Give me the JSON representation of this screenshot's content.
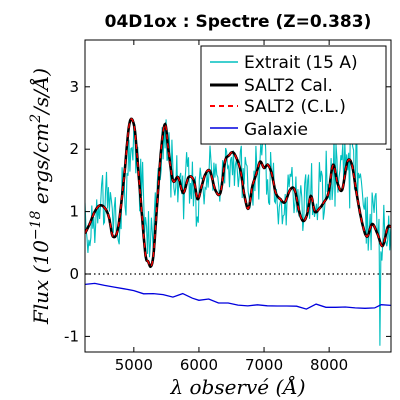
{
  "chart_data": {
    "type": "line",
    "title": "04D1ox : Spectre (Z=0.383)",
    "xlabel": "λ observé (Å)",
    "ylabel": "Flux (10^-18 ergs/cm²/s/Å)",
    "ylabel_parts": {
      "pre": "Flux (10",
      "exp": "−18",
      "post": " ergs/cm",
      "exp2": "2",
      "post2": "/s/Å)"
    },
    "xlim": [
      4250,
      8950
    ],
    "ylim": [
      -1.25,
      3.75
    ],
    "xticks": [
      5000,
      6000,
      7000,
      8000
    ],
    "xtick_labels": [
      "5000",
      "6000",
      "7000",
      "8000"
    ],
    "yticks": [
      -1,
      0,
      1,
      2,
      3
    ],
    "ytick_labels": [
      "-1",
      "0",
      "1",
      "2",
      "3"
    ],
    "zero_line": {
      "y": 0,
      "style": "dotted",
      "color": "#000000"
    },
    "legend": {
      "placement": "top-right"
    },
    "series": [
      {
        "name": "Extrait (15 Å)",
        "legend_label": "Extrait (15 A)",
        "color": "#00bfbf",
        "style": "solid",
        "noisy": true,
        "x": [
          4250,
          4400,
          4550,
          4700,
          4850,
          4950,
          5050,
          5150,
          5250,
          5350,
          5450,
          5600,
          5750,
          5900,
          6000,
          6100,
          6250,
          6400,
          6550,
          6700,
          6850,
          7000,
          7150,
          7300,
          7450,
          7600,
          7750,
          7900,
          8050,
          8200,
          8350,
          8500,
          8600,
          8700,
          8800,
          8950
        ],
        "y": [
          0.6,
          1.0,
          1.2,
          1.0,
          1.2,
          1.5,
          1.8,
          1.4,
          1.0,
          1.4,
          2.2,
          1.8,
          1.6,
          1.5,
          1.3,
          1.6,
          1.7,
          1.6,
          1.4,
          1.8,
          1.9,
          1.8,
          1.5,
          1.3,
          1.4,
          1.1,
          1.3,
          1.5,
          1.7,
          1.9,
          1.8,
          1.4,
          1.0,
          0.8,
          0.8,
          0.8
        ]
      },
      {
        "name": "SALT2 Cal.",
        "legend_label": "SALT2 Cal.",
        "color": "#000000",
        "style": "solid",
        "width": 2.5,
        "x": [
          4250,
          4320,
          4400,
          4480,
          4560,
          4620,
          4680,
          4760,
          4850,
          4930,
          5000,
          5050,
          5120,
          5180,
          5220,
          5260,
          5300,
          5350,
          5420,
          5480,
          5530,
          5600,
          5680,
          5760,
          5840,
          5920,
          5980,
          6040,
          6100,
          6170,
          6250,
          6330,
          6400,
          6460,
          6520,
          6580,
          6640,
          6700,
          6760,
          6820,
          6880,
          6940,
          7000,
          7060,
          7120,
          7180,
          7250,
          7320,
          7400,
          7470,
          7540,
          7600,
          7660,
          7720,
          7780,
          7850,
          7920,
          7990,
          8060,
          8130,
          8200,
          8280,
          8350,
          8420,
          8500,
          8580,
          8660,
          8740,
          8820,
          8900,
          8950
        ],
        "y": [
          0.65,
          0.8,
          1.0,
          1.1,
          1.05,
          0.9,
          0.6,
          0.75,
          1.55,
          2.4,
          2.4,
          1.9,
          1.0,
          0.3,
          0.2,
          0.12,
          0.3,
          1.0,
          2.0,
          2.4,
          2.0,
          1.5,
          1.55,
          1.3,
          1.55,
          1.5,
          1.2,
          1.4,
          1.6,
          1.65,
          1.35,
          1.3,
          1.8,
          1.9,
          1.95,
          1.85,
          1.65,
          1.25,
          1.05,
          1.4,
          1.6,
          1.8,
          1.7,
          1.75,
          1.6,
          1.3,
          1.2,
          1.15,
          1.35,
          1.35,
          1.0,
          0.85,
          0.95,
          1.25,
          1.0,
          1.05,
          1.15,
          1.3,
          1.75,
          1.45,
          1.35,
          1.8,
          1.75,
          1.3,
          0.85,
          0.6,
          0.8,
          0.65,
          0.45,
          0.75,
          0.75
        ]
      },
      {
        "name": "SALT2 (C.L.)",
        "legend_label": "SALT2 (C.L.)",
        "color": "#ff0000",
        "style": "dashed",
        "same_as": "SALT2 Cal."
      },
      {
        "name": "Galaxie",
        "legend_label": "Galaxie",
        "color": "#0000dd",
        "style": "solid",
        "x": [
          4250,
          4400,
          4550,
          4700,
          4850,
          5000,
          5150,
          5300,
          5450,
          5600,
          5750,
          5900,
          6000,
          6150,
          6300,
          6450,
          6600,
          6750,
          6900,
          7050,
          7200,
          7350,
          7500,
          7650,
          7800,
          7950,
          8100,
          8250,
          8400,
          8550,
          8700,
          8800,
          8950
        ],
        "y": [
          -0.15,
          -0.15,
          -0.2,
          -0.2,
          -0.22,
          -0.25,
          -0.3,
          -0.3,
          -0.32,
          -0.35,
          -0.3,
          -0.4,
          -0.42,
          -0.4,
          -0.45,
          -0.48,
          -0.5,
          -0.52,
          -0.5,
          -0.52,
          -0.53,
          -0.5,
          -0.52,
          -0.55,
          -0.5,
          -0.53,
          -0.55,
          -0.52,
          -0.55,
          -0.55,
          -0.55,
          -0.5,
          -0.5
        ]
      }
    ]
  }
}
